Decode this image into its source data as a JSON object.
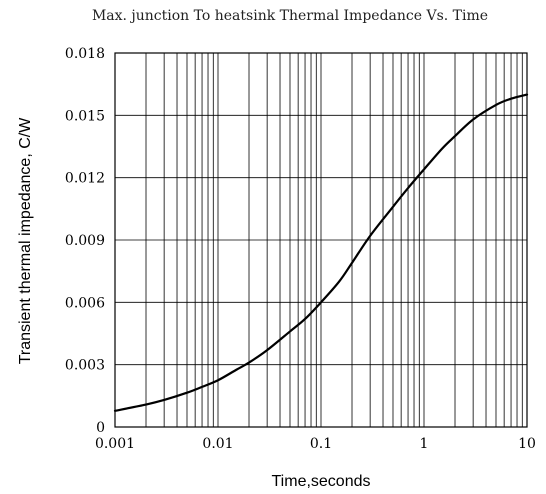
{
  "chart_data": {
    "type": "line",
    "title": "Max. junction To heatsink Thermal Impedance Vs. Time",
    "xlabel": "Time,seconds",
    "ylabel": "Transient thermal impedance, C/W",
    "x_scale": "log",
    "xlim": [
      0.001,
      10
    ],
    "ylim": [
      0,
      0.018
    ],
    "x_ticks": [
      0.001,
      0.01,
      0.1,
      1,
      10
    ],
    "x_tick_labels": [
      "0.001",
      "0.01",
      "0.1",
      "1",
      "10"
    ],
    "y_ticks": [
      0,
      0.003,
      0.006,
      0.009,
      0.012,
      0.015,
      0.018
    ],
    "y_tick_labels": [
      "0",
      "0.003",
      "0.006",
      "0.009",
      "0.012",
      "0.015",
      "0.018"
    ],
    "grid": true,
    "series": [
      {
        "x": [
          0.001,
          0.002,
          0.003,
          0.005,
          0.007,
          0.01,
          0.015,
          0.02,
          0.03,
          0.05,
          0.07,
          0.1,
          0.15,
          0.2,
          0.3,
          0.5,
          0.7,
          1,
          1.5,
          2,
          3,
          5,
          7,
          10
        ],
        "y": [
          0.00078,
          0.00108,
          0.0013,
          0.00165,
          0.00193,
          0.00225,
          0.00275,
          0.0031,
          0.0037,
          0.0046,
          0.0052,
          0.006,
          0.007,
          0.0079,
          0.0092,
          0.0106,
          0.0115,
          0.0124,
          0.0134,
          0.014,
          0.0148,
          0.0155,
          0.0158,
          0.016
        ]
      }
    ]
  }
}
